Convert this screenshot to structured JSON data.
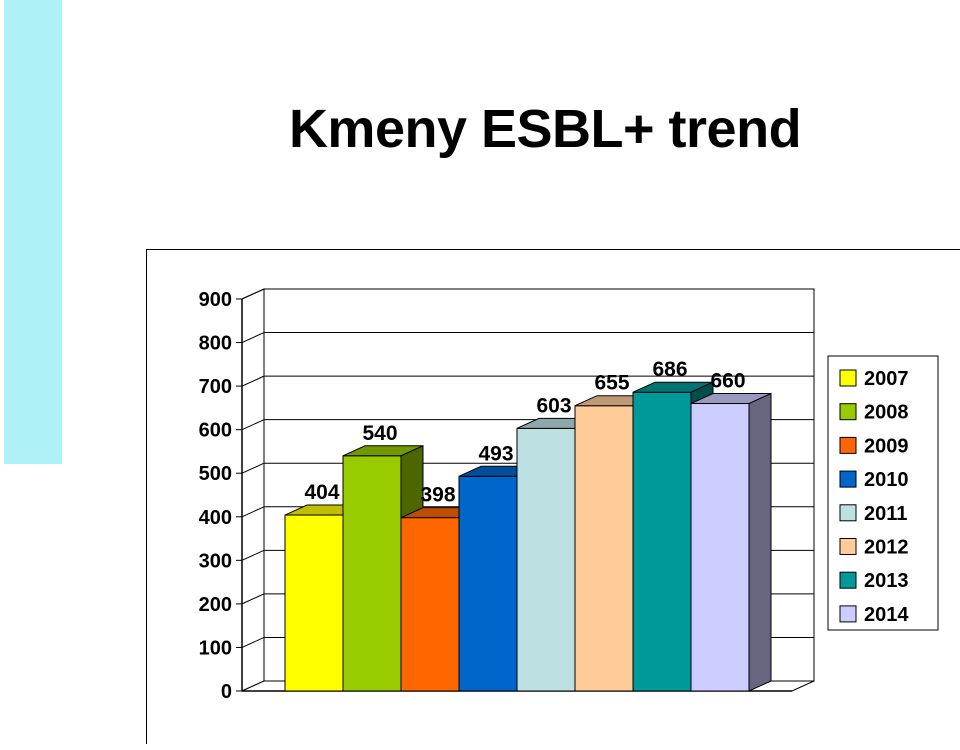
{
  "slide": {
    "title": "Kmeny ESBL+ trend"
  },
  "chart_data": {
    "type": "bar",
    "title": "",
    "xlabel": "",
    "ylabel": "",
    "ylim": [
      0,
      900
    ],
    "yticks": [
      0,
      100,
      200,
      300,
      400,
      500,
      600,
      700,
      800,
      900
    ],
    "grid": true,
    "legend_position": "right",
    "series": [
      {
        "name": "2007",
        "value": 404,
        "color": "#ffff00"
      },
      {
        "name": "2008",
        "value": 540,
        "color": "#99cc00"
      },
      {
        "name": "2009",
        "value": 398,
        "color": "#ff6600"
      },
      {
        "name": "2010",
        "value": 493,
        "color": "#0066cc"
      },
      {
        "name": "2011",
        "value": 603,
        "color": "#bde0e3"
      },
      {
        "name": "2012",
        "value": 655,
        "color": "#ffcc99"
      },
      {
        "name": "2013",
        "value": 686,
        "color": "#009999"
      },
      {
        "name": "2014",
        "value": 660,
        "color": "#ccccff"
      }
    ]
  }
}
